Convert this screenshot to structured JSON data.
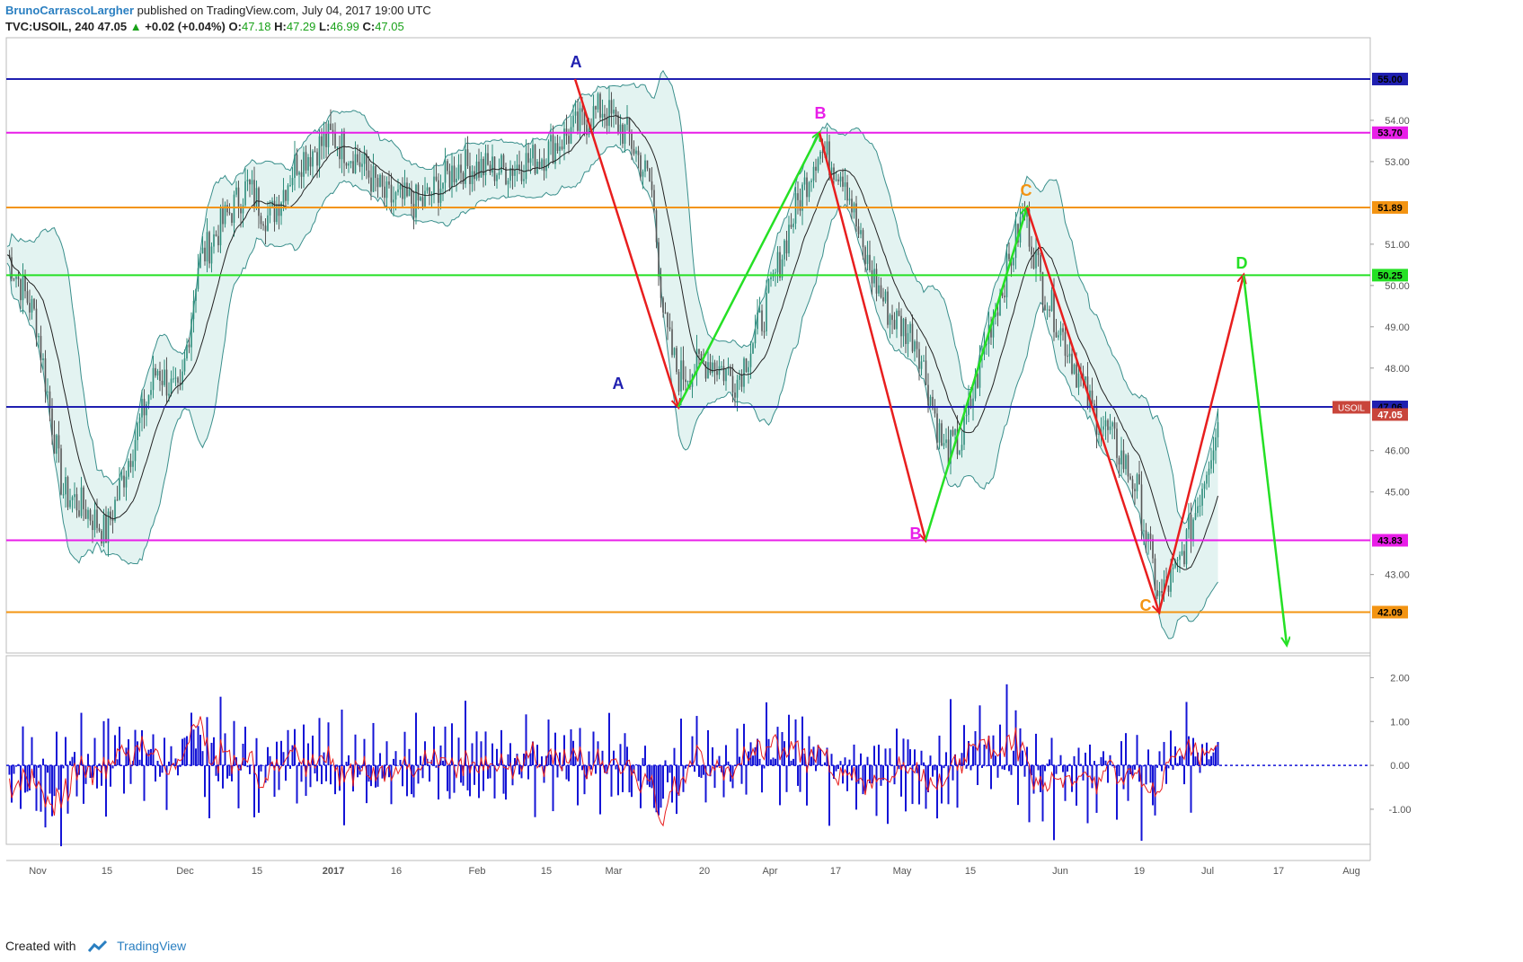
{
  "header": {
    "author": "BrunoCarrascoLargher",
    "published": "published on TradingView.com, July 04, 2017 19:00 UTC",
    "symbol": "TVC:USOIL, 240",
    "last": "47.05",
    "change": "+0.02 (+0.04%)",
    "o_label": "O:",
    "o": "47.18",
    "h_label": "H:",
    "h": "47.29",
    "l_label": "L:",
    "l": "46.99",
    "c_label": "C:",
    "c": "47.05"
  },
  "footer": {
    "created_with": "Created with",
    "brand": "TradingView"
  },
  "chart_data": {
    "type": "candlestick",
    "price_axis": {
      "range": [
        41.1,
        56.0
      ],
      "ticks": [
        "54.00",
        "53.00",
        "51.00",
        "50.00",
        "49.00",
        "48.00",
        "46.00",
        "45.00",
        "43.00"
      ],
      "tick_values": [
        54,
        53,
        51,
        50,
        49,
        48,
        46,
        45,
        43
      ]
    },
    "time_axis": {
      "labels": [
        "Nov",
        "15",
        "Dec",
        "15",
        "2017",
        "16",
        "Feb",
        "15",
        "Mar",
        "20",
        "Apr",
        "17",
        "May",
        "15",
        "Jun",
        "19",
        "Jul",
        "17",
        "Aug"
      ]
    },
    "horizontal_levels": [
      {
        "label": "55.00",
        "value": 55.0,
        "color": "#1f1fb0"
      },
      {
        "label": "53.70",
        "value": 53.7,
        "color": "#e81ee8"
      },
      {
        "label": "51.89",
        "value": 51.89,
        "color": "#f39412"
      },
      {
        "label": "50.25",
        "value": 50.25,
        "color": "#25e025"
      },
      {
        "label": "47.06",
        "value": 47.06,
        "color": "#1f1fb0"
      },
      {
        "label": "43.83",
        "value": 43.83,
        "color": "#e81ee8"
      },
      {
        "label": "42.09",
        "value": 42.09,
        "color": "#f39412"
      }
    ],
    "current_price": {
      "label": "USOIL",
      "value": "47.05",
      "color": "#c9453b"
    },
    "wave_labels": [
      {
        "text": "A",
        "color": "#1f1fb0"
      },
      {
        "text": "A",
        "color": "#1f1fb0"
      },
      {
        "text": "B",
        "color": "#e81ee8"
      },
      {
        "text": "B",
        "color": "#e81ee8"
      },
      {
        "text": "C",
        "color": "#f39412"
      },
      {
        "text": "C",
        "color": "#f39412"
      },
      {
        "text": "D",
        "color": "#25e025"
      }
    ],
    "wave_arrows": [
      {
        "from_price": 55.0,
        "to_price": 47.06,
        "color": "#e81e1e"
      },
      {
        "from_price": 47.06,
        "to_price": 53.7,
        "color": "#25e025"
      },
      {
        "from_price": 53.7,
        "to_price": 43.83,
        "color": "#e81e1e"
      },
      {
        "from_price": 43.83,
        "to_price": 51.89,
        "color": "#25e025"
      },
      {
        "from_price": 51.89,
        "to_price": 42.09,
        "color": "#e81e1e"
      },
      {
        "from_price": 42.09,
        "to_price": 50.25,
        "color": "#e81e1e"
      },
      {
        "from_price": 50.25,
        "to_price": 41.3,
        "color": "#25e025"
      }
    ],
    "indicator": {
      "range": [
        -1.8,
        2.5
      ],
      "ticks": [
        "2.00",
        "1.00",
        "0.00",
        "-1.00"
      ],
      "tick_values": [
        2,
        1,
        0,
        -1
      ],
      "histogram_color": "#1414d6",
      "signal_color": "#e81e1e"
    },
    "colors": {
      "up": "#2c8c7a",
      "down": "#555555",
      "band_fill": "#e3f3f1",
      "band_line": "#3a8f8c",
      "ma": "#222222"
    }
  }
}
